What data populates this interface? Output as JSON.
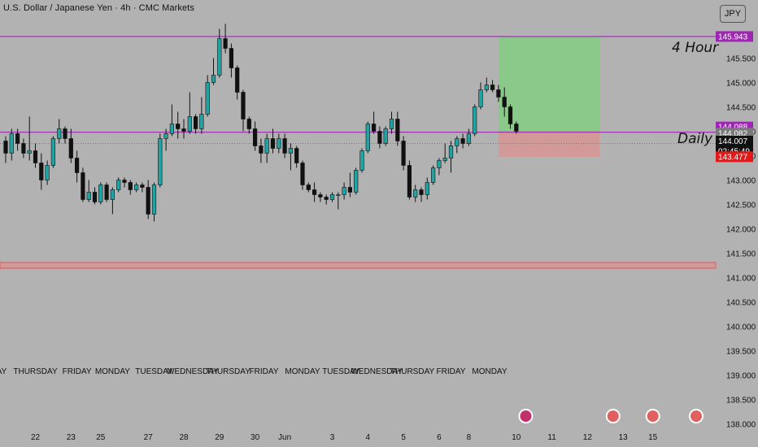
{
  "header": {
    "symbol_title": "U.S. Dollar / Japanese Yen · 4h · CMC Markets",
    "currency": "JPY"
  },
  "annotations": {
    "four_hour_label": "4 Hour",
    "daily_label": "Daily"
  },
  "colors": {
    "background": "#b2b2b2",
    "up_candle": "#22a3a3",
    "down_candle": "#111111",
    "resistance_line": "#9c27b0",
    "support_line": "#e35a5a",
    "target_zone": "#8bc98b",
    "stop_zone": "#d39898"
  },
  "chart_data": {
    "type": "candlestick",
    "title": "U.S. Dollar / Japanese Yen · 4h · CMC Markets",
    "ylim": [
      138.0,
      146.3
    ],
    "y_ticks": [
      "145.500",
      "145.000",
      "144.500",
      "144.000",
      "143.500",
      "143.000",
      "142.500",
      "142.000",
      "141.500",
      "141.000",
      "140.500",
      "140.000",
      "139.500",
      "139.000",
      "138.500",
      "138.000"
    ],
    "weekday_labels": [
      {
        "label": "TUESDAY",
        "bar": -3.0
      },
      {
        "label": "THURSDAY",
        "bar": 5
      },
      {
        "label": "FRIDAY",
        "bar": 12
      },
      {
        "label": "MONDAY",
        "bar": 18
      },
      {
        "label": "TUESDAY",
        "bar": 25
      },
      {
        "label": "WEDNESDAY",
        "bar": 31.5
      },
      {
        "label": "THURSDAY",
        "bar": 37.5
      },
      {
        "label": "FRIDAY",
        "bar": 43.5
      },
      {
        "label": "MONDAY",
        "bar": 50
      },
      {
        "label": "TUESDAY",
        "bar": 56.5
      },
      {
        "label": "WEDNESDAY",
        "bar": 62.5
      },
      {
        "label": "THURSDAY",
        "bar": 68.5
      },
      {
        "label": "FRIDAY",
        "bar": 75
      },
      {
        "label": "MONDAY",
        "bar": 81.5
      }
    ],
    "date_labels": [
      {
        "label": "22",
        "bar": 5
      },
      {
        "label": "23",
        "bar": 11
      },
      {
        "label": "25",
        "bar": 16
      },
      {
        "label": "27",
        "bar": 24
      },
      {
        "label": "28",
        "bar": 30
      },
      {
        "label": "29",
        "bar": 36
      },
      {
        "label": "30",
        "bar": 42
      },
      {
        "label": "Jun",
        "bar": 47
      },
      {
        "label": "3",
        "bar": 55
      },
      {
        "label": "4",
        "bar": 61
      },
      {
        "label": "5",
        "bar": 67
      },
      {
        "label": "6",
        "bar": 73
      },
      {
        "label": "8",
        "bar": 78
      },
      {
        "label": "10",
        "bar": 86
      },
      {
        "label": "11",
        "bar": 92
      },
      {
        "label": "12",
        "bar": 98
      },
      {
        "label": "13",
        "bar": 104
      },
      {
        "label": "15",
        "bar": 109
      }
    ],
    "price_labels": [
      {
        "label": "145.943",
        "value": 145.943,
        "color": "#9c27b0"
      },
      {
        "label": "144.088",
        "value": 144.088,
        "color": "#9c27b0"
      },
      {
        "label": "144.082",
        "value": 143.96,
        "color": "#7a7a7a"
      },
      {
        "label": "144.007",
        "value": 143.8,
        "color": "#111111",
        "sub": "02:45:49"
      },
      {
        "label": "143.477",
        "value": 143.477,
        "color": "#e31919"
      }
    ],
    "levels": [
      {
        "name": "4 Hour",
        "value": 145.943
      },
      {
        "name": "Daily",
        "value": 143.98
      },
      {
        "name": "support",
        "value": 141.25
      }
    ],
    "position_box": {
      "start_bar": 83,
      "end_bar": 100,
      "target": 145.943,
      "entry": 144.007,
      "stop": 143.477
    },
    "candles": [
      [
        143.8,
        143.9,
        143.35,
        143.55
      ],
      [
        143.55,
        144.05,
        143.4,
        143.95
      ],
      [
        143.95,
        144.05,
        143.6,
        143.75
      ],
      [
        143.75,
        143.85,
        143.45,
        143.55
      ],
      [
        143.55,
        144.3,
        143.4,
        143.6
      ],
      [
        143.6,
        143.75,
        143.25,
        143.35
      ],
      [
        143.35,
        143.55,
        142.8,
        143.0
      ],
      [
        143.0,
        143.4,
        142.9,
        143.3
      ],
      [
        143.3,
        143.9,
        143.25,
        143.85
      ],
      [
        143.85,
        144.25,
        143.75,
        144.05
      ],
      [
        144.05,
        144.1,
        143.75,
        143.85
      ],
      [
        143.85,
        144.05,
        143.35,
        143.45
      ],
      [
        143.45,
        143.6,
        142.95,
        143.15
      ],
      [
        143.15,
        143.25,
        142.55,
        142.6
      ],
      [
        142.6,
        143.0,
        142.55,
        142.75
      ],
      [
        142.75,
        142.85,
        142.5,
        142.55
      ],
      [
        142.55,
        142.95,
        142.5,
        142.9
      ],
      [
        142.9,
        142.95,
        142.55,
        142.6
      ],
      [
        142.6,
        142.85,
        142.3,
        142.8
      ],
      [
        142.8,
        143.05,
        142.75,
        143.0
      ],
      [
        143.0,
        143.05,
        142.85,
        142.95
      ],
      [
        142.95,
        143.0,
        142.7,
        142.8
      ],
      [
        142.8,
        142.95,
        142.75,
        142.9
      ],
      [
        142.9,
        142.95,
        142.75,
        142.85
      ],
      [
        142.85,
        143.0,
        142.2,
        142.3
      ],
      [
        142.3,
        142.95,
        142.15,
        142.9
      ],
      [
        142.9,
        143.95,
        142.85,
        143.85
      ],
      [
        143.85,
        144.05,
        143.6,
        143.95
      ],
      [
        143.95,
        144.55,
        143.9,
        144.15
      ],
      [
        144.15,
        144.4,
        143.85,
        144.05
      ],
      [
        144.05,
        144.25,
        143.85,
        144.0
      ],
      [
        144.0,
        144.8,
        143.95,
        144.3
      ],
      [
        144.3,
        144.35,
        143.95,
        144.05
      ],
      [
        144.05,
        144.7,
        143.95,
        144.35
      ],
      [
        144.35,
        145.15,
        144.3,
        145.0
      ],
      [
        145.0,
        145.5,
        144.95,
        145.15
      ],
      [
        145.15,
        146.1,
        145.1,
        145.9
      ],
      [
        145.9,
        146.2,
        145.6,
        145.7
      ],
      [
        145.7,
        145.8,
        145.1,
        145.3
      ],
      [
        145.3,
        145.35,
        144.65,
        144.8
      ],
      [
        144.8,
        144.85,
        144.0,
        144.25
      ],
      [
        144.25,
        144.3,
        143.95,
        144.05
      ],
      [
        144.05,
        144.2,
        143.6,
        143.7
      ],
      [
        143.7,
        143.85,
        143.35,
        143.55
      ],
      [
        143.55,
        143.95,
        143.35,
        143.85
      ],
      [
        143.85,
        144.05,
        143.55,
        143.65
      ],
      [
        143.65,
        143.95,
        143.55,
        143.85
      ],
      [
        143.85,
        143.95,
        143.45,
        143.55
      ],
      [
        143.55,
        143.75,
        143.2,
        143.65
      ],
      [
        143.65,
        143.7,
        143.25,
        143.35
      ],
      [
        143.35,
        143.4,
        142.8,
        142.9
      ],
      [
        142.9,
        142.95,
        142.75,
        142.8
      ],
      [
        142.8,
        142.95,
        142.55,
        142.7
      ],
      [
        142.7,
        142.75,
        142.55,
        142.65
      ],
      [
        142.65,
        142.7,
        142.5,
        142.6
      ],
      [
        142.6,
        142.75,
        142.55,
        142.7
      ],
      [
        142.7,
        142.75,
        142.4,
        142.7
      ],
      [
        142.7,
        142.95,
        142.6,
        142.85
      ],
      [
        142.85,
        143.15,
        142.65,
        142.75
      ],
      [
        142.75,
        143.25,
        142.7,
        143.2
      ],
      [
        143.2,
        143.65,
        143.15,
        143.6
      ],
      [
        143.6,
        144.2,
        143.55,
        144.15
      ],
      [
        144.15,
        144.4,
        143.95,
        144.0
      ],
      [
        144.0,
        144.1,
        143.65,
        143.75
      ],
      [
        143.75,
        144.1,
        143.7,
        144.05
      ],
      [
        144.05,
        144.4,
        143.95,
        144.25
      ],
      [
        144.25,
        144.4,
        143.7,
        143.8
      ],
      [
        143.8,
        143.9,
        143.2,
        143.3
      ],
      [
        143.3,
        143.4,
        142.6,
        142.65
      ],
      [
        142.65,
        142.9,
        142.55,
        142.8
      ],
      [
        142.8,
        142.85,
        142.55,
        142.7
      ],
      [
        142.7,
        143.05,
        142.6,
        142.95
      ],
      [
        142.95,
        143.3,
        142.9,
        143.25
      ],
      [
        143.25,
        143.45,
        143.1,
        143.4
      ],
      [
        143.4,
        143.75,
        143.35,
        143.45
      ],
      [
        143.45,
        143.8,
        143.15,
        143.7
      ],
      [
        143.7,
        143.9,
        143.55,
        143.85
      ],
      [
        143.85,
        143.95,
        143.65,
        143.75
      ],
      [
        143.75,
        144.05,
        143.7,
        143.95
      ],
      [
        143.95,
        144.55,
        143.9,
        144.5
      ],
      [
        144.5,
        145.0,
        144.45,
        144.85
      ],
      [
        144.85,
        145.1,
        144.8,
        144.95
      ],
      [
        144.95,
        145.05,
        144.8,
        144.85
      ],
      [
        144.85,
        144.95,
        144.6,
        144.7
      ],
      [
        144.7,
        144.9,
        144.3,
        144.5
      ],
      [
        144.5,
        144.55,
        144.05,
        144.15
      ],
      [
        144.15,
        144.2,
        143.95,
        144.0
      ]
    ]
  }
}
